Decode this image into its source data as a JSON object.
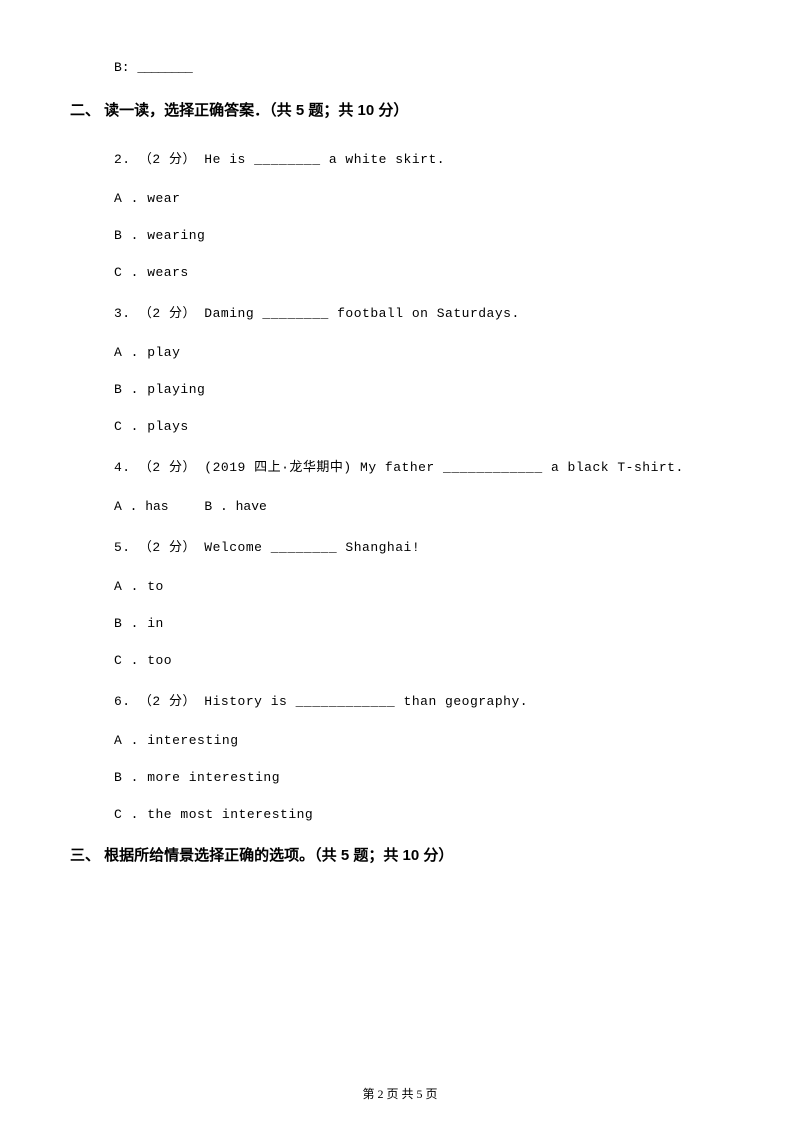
{
  "topLine": {
    "prefix": "B: ",
    "blank": "________"
  },
  "section2": {
    "header": "二、 读一读，选择正确答案．（共 5 题；共 10 分）",
    "q2": {
      "stem": "2. （2 分） He is ________ a white skirt.",
      "optA": "A . wear",
      "optB": "B . wearing",
      "optC": "C . wears"
    },
    "q3": {
      "stem": "3. （2 分） Daming ________ football on Saturdays.",
      "optA": "A . play",
      "optB": "B . playing",
      "optC": "C . plays"
    },
    "q4": {
      "stem": "4. （2 分） (2019 四上·龙华期中) My father ____________ a black T-shirt.",
      "optA": "A . has",
      "optB": "B . have"
    },
    "q5": {
      "stem": "5. （2 分） Welcome ________ Shanghai!",
      "optA": "A . to",
      "optB": "B . in",
      "optC": "C . too"
    },
    "q6": {
      "stem": "6. （2 分） History is ____________ than geography.",
      "optA": "A . interesting",
      "optB": "B . more interesting",
      "optC": "C . the most interesting"
    }
  },
  "section3": {
    "header": "三、 根据所给情景选择正确的选项。（共 5 题；共 10 分）"
  },
  "footer": "第 2 页 共 5 页"
}
